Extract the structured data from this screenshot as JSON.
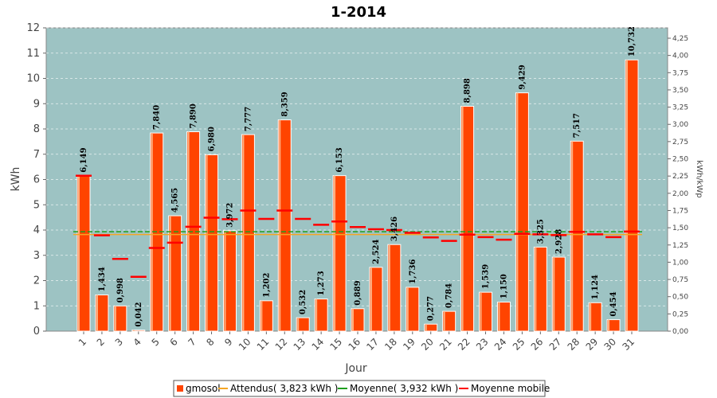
{
  "colors": {
    "plot_bg": "#9dc3c3",
    "bar": "#ff4400",
    "expected": "#f5a623",
    "average": "#1e9e1e",
    "moving_avg": "#ff0000"
  },
  "legend": {
    "items": [
      {
        "label": "gmosol",
        "kind": "box",
        "color": "#ff4400"
      },
      {
        "label": "Attendus( 3,823 kWh )",
        "kind": "line",
        "color": "#f5a623"
      },
      {
        "label": "Moyenne( 3,932 kWh )",
        "kind": "line",
        "color": "#1e9e1e"
      },
      {
        "label": "Moyenne mobile",
        "kind": "line",
        "color": "#ff0000"
      }
    ]
  },
  "chart_data": {
    "type": "bar",
    "title": "1-2014",
    "xlabel": "Jour",
    "ylabel": "kWh",
    "y2label": "kWh/kWp",
    "ylim": [
      0,
      12
    ],
    "y2lim": [
      0,
      4.4
    ],
    "yticks": [
      "0",
      "1",
      "2",
      "3",
      "4",
      "5",
      "6",
      "7",
      "8",
      "9",
      "10",
      "11",
      "12"
    ],
    "y2ticks": [
      "0,00",
      "0,25",
      "0,50",
      "0,75",
      "1,00",
      "1,25",
      "1,50",
      "1,75",
      "2,00",
      "2,25",
      "2,50",
      "2,75",
      "3,00",
      "3,25",
      "3,50",
      "3,75",
      "4,00",
      "4,25"
    ],
    "categories": [
      "1",
      "2",
      "3",
      "4",
      "5",
      "6",
      "7",
      "8",
      "9",
      "10",
      "11",
      "12",
      "13",
      "14",
      "15",
      "16",
      "17",
      "18",
      "19",
      "20",
      "21",
      "22",
      "23",
      "24",
      "25",
      "26",
      "27",
      "28",
      "29",
      "30",
      "31"
    ],
    "values": [
      6.149,
      1.434,
      0.998,
      0.042,
      7.84,
      4.565,
      7.89,
      6.98,
      3.972,
      7.777,
      1.202,
      8.359,
      0.532,
      1.273,
      6.153,
      0.889,
      2.524,
      3.426,
      1.736,
      0.277,
      0.784,
      8.898,
      1.539,
      1.15,
      9.429,
      3.325,
      2.928,
      7.517,
      1.124,
      0.454,
      10.732
    ],
    "value_labels": [
      "6,149",
      "1,434",
      "0,998",
      "0,042",
      "7,840",
      "4,565",
      "7,890",
      "6,980",
      "3,972",
      "7,777",
      "1,202",
      "8,359",
      "0,532",
      "1,273",
      "6,153",
      "0,889",
      "2,524",
      "3,426",
      "1,736",
      "0,277",
      "0,784",
      "8,898",
      "1,539",
      "1,150",
      "9,429",
      "3,325",
      "2,928",
      "7,517",
      "1,124",
      "0,454",
      "10,732"
    ],
    "expected": 3.823,
    "average": 3.932,
    "moving_average": [
      6.149,
      3.79,
      2.86,
      2.15,
      3.29,
      3.5,
      4.13,
      4.49,
      4.43,
      4.77,
      4.44,
      4.77,
      4.44,
      4.21,
      4.34,
      4.12,
      4.03,
      4.0,
      3.89,
      3.71,
      3.57,
      3.82,
      3.72,
      3.62,
      3.85,
      3.83,
      3.8,
      3.93,
      3.83,
      3.72,
      3.94
    ],
    "series": [
      {
        "name": "gmosol",
        "type": "bar"
      },
      {
        "name": "Attendus( 3,823 kWh )",
        "type": "line"
      },
      {
        "name": "Moyenne( 3,932 kWh )",
        "type": "line"
      },
      {
        "name": "Moyenne mobile",
        "type": "marker"
      }
    ],
    "grid": true,
    "legend_position": "bottom"
  }
}
